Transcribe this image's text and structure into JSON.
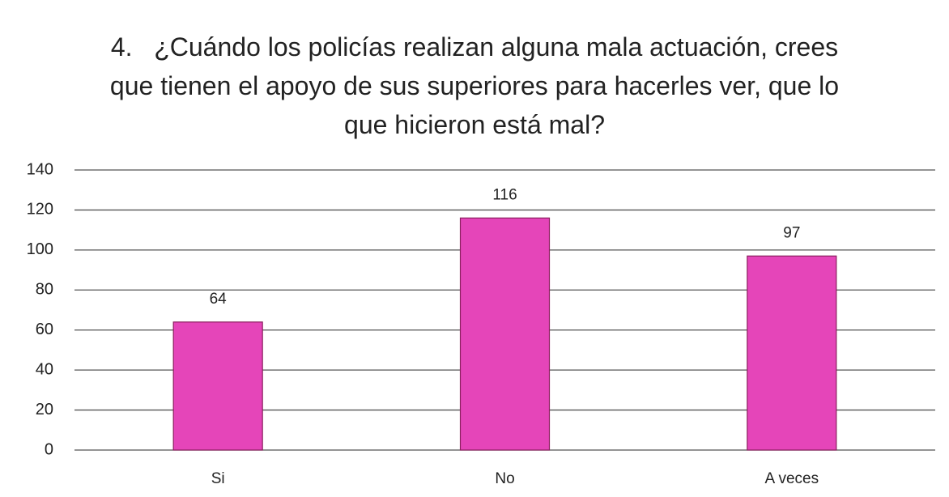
{
  "chart_data": {
    "type": "bar",
    "title": "4.   ¿Cuándo los policías realizan alguna mala actuación, crees que tienen el apoyo de sus superiores para hacerles ver, que lo que hicieron está mal?",
    "categories": [
      "Si",
      "No",
      "A veces"
    ],
    "values": [
      64,
      116,
      97
    ],
    "color": "#e545b9",
    "ylim": [
      0,
      140
    ],
    "yticks": [
      0,
      20,
      40,
      60,
      80,
      100,
      120,
      140
    ],
    "grid": true,
    "data_labels": true
  }
}
